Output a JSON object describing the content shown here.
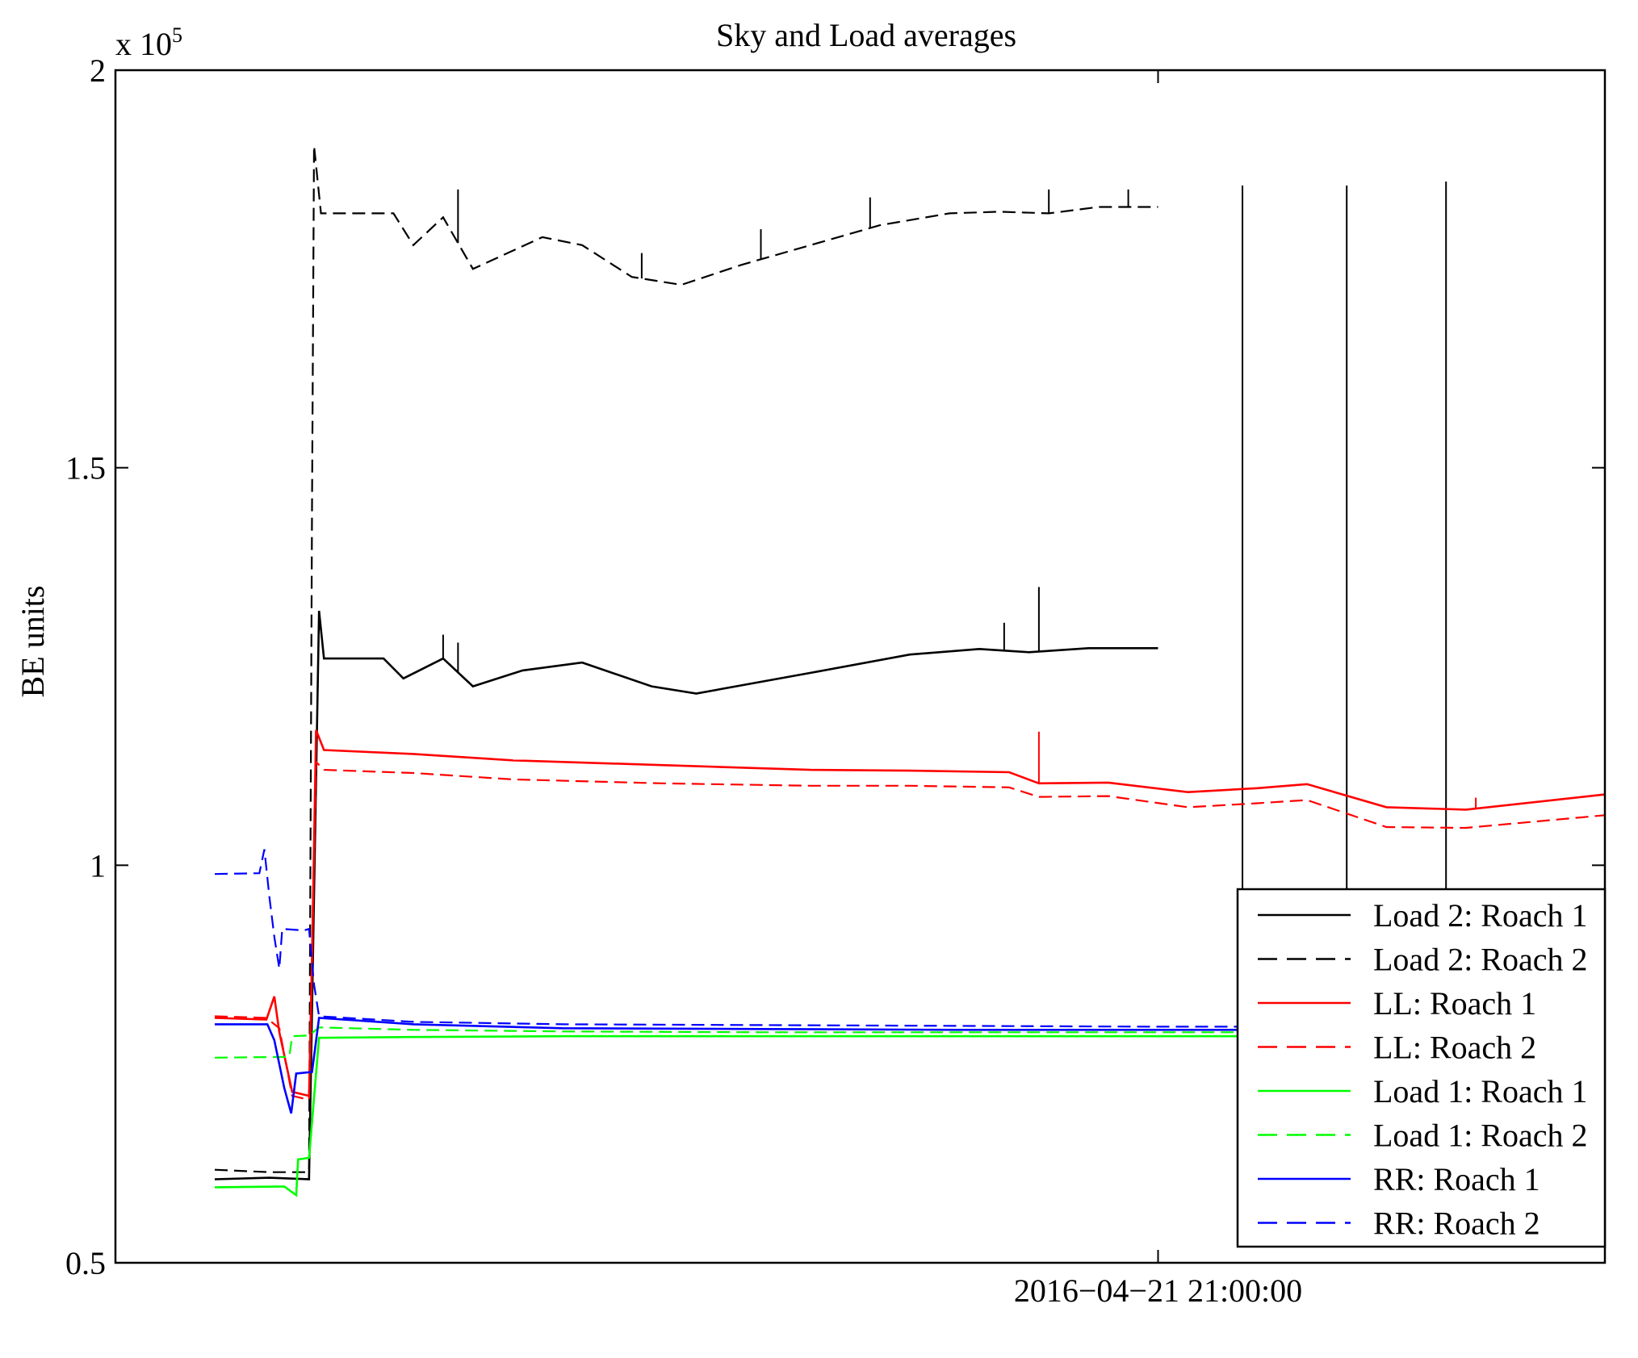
{
  "chart_data": {
    "type": "line",
    "title": "Sky and Load averages",
    "ylabel": "BE units",
    "xlabel": "",
    "y_multiplier": "x 10",
    "y_multiplier_exponent": "5",
    "ylim": [
      50000,
      200000
    ],
    "y_ticks": [
      {
        "value": 50000,
        "label": "0.5"
      },
      {
        "value": 100000,
        "label": "1"
      },
      {
        "value": 150000,
        "label": "1.5"
      },
      {
        "value": 200000,
        "label": "2"
      }
    ],
    "x_unit": "hours relative to 2016-04-21 21:00:00",
    "xlim": [
      -10.5,
      4.5
    ],
    "x_ticks": [
      {
        "value": 0,
        "label": "2016−04−21 21:00:00"
      }
    ],
    "legend_position": "bottom-right",
    "series": [
      {
        "name": "Load 2: Roach 1",
        "color": "#000000",
        "dash": "solid",
        "points": [
          [
            -9.5,
            60500
          ],
          [
            -8.95,
            60700
          ],
          [
            -8.55,
            60500
          ],
          [
            -8.45,
            132000
          ],
          [
            -8.4,
            126000
          ],
          [
            -7.8,
            126000
          ],
          [
            -7.6,
            123500
          ],
          [
            -7.2,
            126000
          ],
          [
            -6.9,
            122500
          ],
          [
            -6.4,
            124500
          ],
          [
            -5.8,
            125500
          ],
          [
            -5.1,
            122500
          ],
          [
            -4.65,
            121600
          ],
          [
            -3.5,
            124200
          ],
          [
            -2.5,
            126500
          ],
          [
            -1.8,
            127200
          ],
          [
            -1.3,
            126800
          ],
          [
            -0.7,
            127300
          ],
          [
            0,
            127300
          ]
        ],
        "spikes": [
          [
            -7.2,
            129000
          ],
          [
            -7.05,
            128000
          ],
          [
            -1.55,
            130500
          ],
          [
            -1.2,
            135000
          ]
        ]
      },
      {
        "name": "Load 2: Roach 2",
        "color": "#000000",
        "dash": "dashed",
        "points": [
          [
            -9.5,
            61700
          ],
          [
            -8.95,
            61400
          ],
          [
            -8.55,
            61400
          ],
          [
            -8.52,
            145000
          ],
          [
            -8.5,
            190500
          ],
          [
            -8.43,
            182000
          ],
          [
            -7.7,
            182000
          ],
          [
            -7.5,
            178000
          ],
          [
            -7.2,
            181500
          ],
          [
            -6.9,
            175000
          ],
          [
            -6.2,
            179000
          ],
          [
            -5.8,
            178000
          ],
          [
            -5.3,
            174000
          ],
          [
            -4.8,
            173000
          ],
          [
            -4.2,
            175500
          ],
          [
            -3.5,
            178000
          ],
          [
            -2.8,
            180500
          ],
          [
            -2.1,
            182000
          ],
          [
            -1.6,
            182200
          ],
          [
            -1.1,
            182000
          ],
          [
            -0.6,
            182800
          ],
          [
            0,
            182800
          ]
        ],
        "spikes": [
          [
            -7.05,
            185000
          ],
          [
            -5.2,
            177000
          ],
          [
            -4.0,
            180000
          ],
          [
            -2.9,
            184000
          ],
          [
            -1.1,
            185000
          ],
          [
            -0.3,
            185000
          ],
          [
            0.85,
            185500
          ],
          [
            1.9,
            185500
          ],
          [
            2.9,
            186000
          ]
        ]
      },
      {
        "name": "LL: Roach 1",
        "color": "#ff0000",
        "dash": "solid",
        "points": [
          [
            -9.5,
            80800
          ],
          [
            -8.98,
            80600
          ],
          [
            -8.9,
            83500
          ],
          [
            -8.85,
            79000
          ],
          [
            -8.72,
            71500
          ],
          [
            -8.55,
            71000
          ],
          [
            -8.52,
            88000
          ],
          [
            -8.48,
            117000
          ],
          [
            -8.4,
            114500
          ],
          [
            -7.5,
            114000
          ],
          [
            -6.5,
            113200
          ],
          [
            -5.0,
            112600
          ],
          [
            -3.5,
            112000
          ],
          [
            -2.5,
            111900
          ],
          [
            -1.5,
            111700
          ],
          [
            -1.2,
            110300
          ],
          [
            -0.5,
            110400
          ],
          [
            0.3,
            109200
          ],
          [
            1.0,
            109700
          ],
          [
            1.5,
            110200
          ],
          [
            2.3,
            107300
          ],
          [
            3.1,
            107000
          ],
          [
            4.5,
            108900
          ]
        ],
        "spikes": [
          [
            -1.2,
            116800
          ],
          [
            3.2,
            108500
          ]
        ]
      },
      {
        "name": "LL: Roach 2",
        "color": "#ff0000",
        "dash": "dashed",
        "points": [
          [
            -9.5,
            81000
          ],
          [
            -8.98,
            80800
          ],
          [
            -8.85,
            79500
          ],
          [
            -8.72,
            71000
          ],
          [
            -8.55,
            70500
          ],
          [
            -8.48,
            113000
          ],
          [
            -8.4,
            112000
          ],
          [
            -7.5,
            111600
          ],
          [
            -6.5,
            110800
          ],
          [
            -5.0,
            110300
          ],
          [
            -3.5,
            110000
          ],
          [
            -2.5,
            110000
          ],
          [
            -1.5,
            109800
          ],
          [
            -1.2,
            108600
          ],
          [
            -0.5,
            108700
          ],
          [
            0.3,
            107300
          ],
          [
            1.0,
            107800
          ],
          [
            1.5,
            108200
          ],
          [
            2.3,
            104800
          ],
          [
            3.1,
            104700
          ],
          [
            4.5,
            106300
          ]
        ],
        "spikes": []
      },
      {
        "name": "Load 1: Roach 1",
        "color": "#00ff00",
        "dash": "solid",
        "points": [
          [
            -9.5,
            59500
          ],
          [
            -8.8,
            59600
          ],
          [
            -8.68,
            58500
          ],
          [
            -8.66,
            63000
          ],
          [
            -8.55,
            63200
          ],
          [
            -8.45,
            78300
          ],
          [
            -7.5,
            78400
          ],
          [
            -6.0,
            78500
          ],
          [
            -4.0,
            78500
          ],
          [
            -2.0,
            78500
          ],
          [
            0,
            78500
          ],
          [
            4.5,
            78500
          ]
        ],
        "spikes": []
      },
      {
        "name": "Load 1: Roach 2",
        "color": "#00ff00",
        "dash": "dashed",
        "points": [
          [
            -9.5,
            75800
          ],
          [
            -8.75,
            75900
          ],
          [
            -8.72,
            78500
          ],
          [
            -8.55,
            78600
          ],
          [
            -8.45,
            79600
          ],
          [
            -7.5,
            79300
          ],
          [
            -6.0,
            79100
          ],
          [
            -4.0,
            79000
          ],
          [
            -2.0,
            79000
          ],
          [
            0,
            79000
          ],
          [
            4.5,
            79000
          ]
        ],
        "spikes": []
      },
      {
        "name": "RR: Roach 1",
        "color": "#0000ff",
        "dash": "solid",
        "points": [
          [
            -9.5,
            80000
          ],
          [
            -8.97,
            80000
          ],
          [
            -8.9,
            78000
          ],
          [
            -8.8,
            72000
          ],
          [
            -8.73,
            68800
          ],
          [
            -8.68,
            73800
          ],
          [
            -8.52,
            74000
          ],
          [
            -8.45,
            80800
          ],
          [
            -7.5,
            80000
          ],
          [
            -6.0,
            79500
          ],
          [
            -4.0,
            79400
          ],
          [
            -2.0,
            79300
          ],
          [
            0,
            79300
          ],
          [
            4.5,
            79300
          ]
        ],
        "spikes": []
      },
      {
        "name": "RR: Roach 2",
        "color": "#0000ff",
        "dash": "dashed",
        "points": [
          [
            -9.5,
            98900
          ],
          [
            -9.05,
            99000
          ],
          [
            -9.0,
            102000
          ],
          [
            -8.95,
            96000
          ],
          [
            -8.9,
            91000
          ],
          [
            -8.85,
            87000
          ],
          [
            -8.82,
            92000
          ],
          [
            -8.6,
            91800
          ],
          [
            -8.55,
            92000
          ],
          [
            -8.5,
            85000
          ],
          [
            -8.45,
            81000
          ],
          [
            -7.5,
            80300
          ],
          [
            -6.0,
            80000
          ],
          [
            -4.0,
            79900
          ],
          [
            -2.0,
            79800
          ],
          [
            0,
            79700
          ],
          [
            4.5,
            79700
          ]
        ],
        "spikes": []
      }
    ]
  }
}
